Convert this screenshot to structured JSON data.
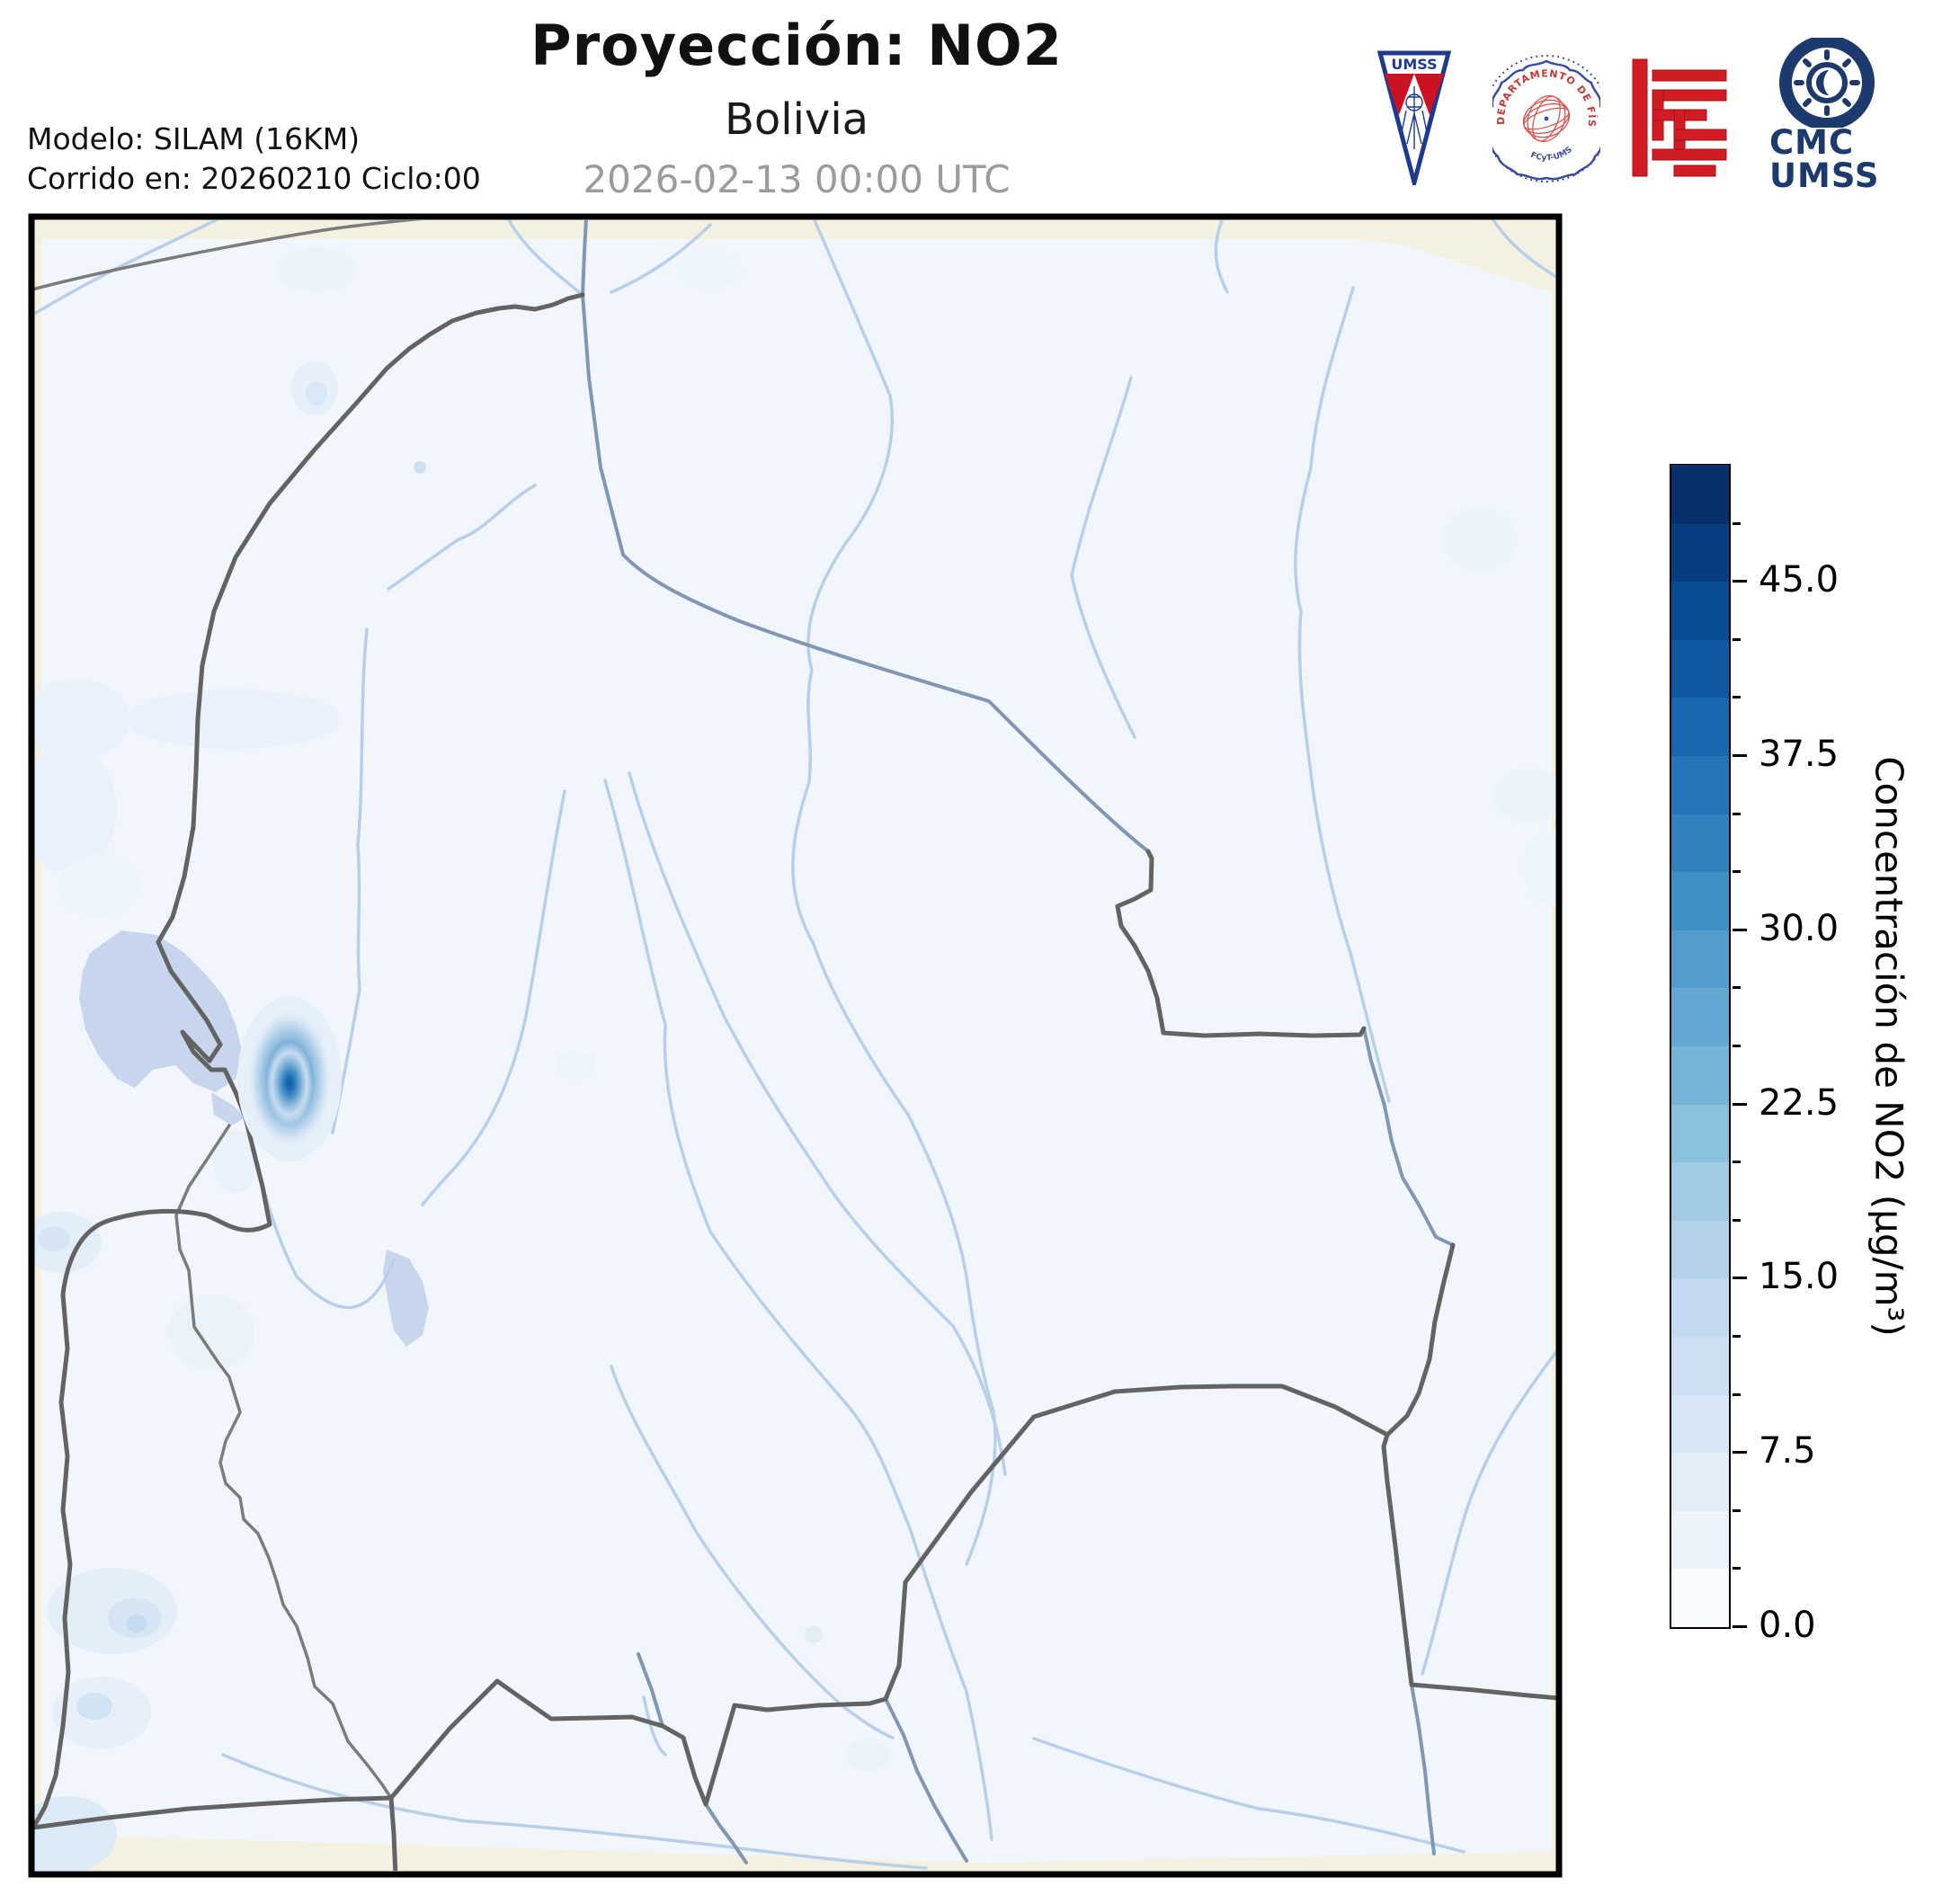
{
  "header": {
    "title": "Proyección: NO2",
    "subtitle": "Bolivia",
    "timestamp": "2026-02-13 00:00 UTC",
    "model_line1": "Modelo: SILAM (16KM)",
    "model_line2": "Corrido en: 20260210 Ciclo:00"
  },
  "logos": {
    "umss_pennant": "UMSS",
    "physics_seal_arc": "DEPARTAMENTO DE FÍSICA",
    "physics_seal_sub": "FCyT-UMSS",
    "cmc_line1": "CMC",
    "cmc_line2": "UMSS"
  },
  "colorbar": {
    "label": "Concentración de NO2 (µg/m³)",
    "unit": "µg/m³",
    "min": 0,
    "max": 50,
    "band_size": 2.5,
    "major_tick_step": 7.5,
    "minor_tick_step": 2.5,
    "ticks": [
      "45.0",
      "37.5",
      "30.0",
      "22.5",
      "15.0",
      "7.5",
      "0.0"
    ],
    "tick_values": [
      45.0,
      37.5,
      30.0,
      22.5,
      15.0,
      7.5,
      0.0
    ],
    "colors_bottom_to_top": [
      "#f7fbff",
      "#ecf4fb",
      "#e2edf8",
      "#d8e7f5",
      "#cde0f1",
      "#c2d9ee",
      "#b1d2e8",
      "#a0cbe2",
      "#8bc0dd",
      "#76b4d8",
      "#62a8d2",
      "#519ccc",
      "#4090c5",
      "#3282be",
      "#2474b7",
      "#1967ad",
      "#0f59a3",
      "#084c94",
      "#083e80",
      "#08306b"
    ]
  },
  "map": {
    "region": "Bolivia",
    "pollutant": "NO2",
    "background_color": "#f1f6fc",
    "outside_domain_color": "#f4f1e0",
    "country_border_color": "#636363",
    "department_border_color": "#7b7b7b",
    "river_color": "#b9cfe9",
    "major_river_color": "#8296b4",
    "lake_color": "#c7d6ec",
    "hotspot_peak_color": "#115f9f"
  }
}
